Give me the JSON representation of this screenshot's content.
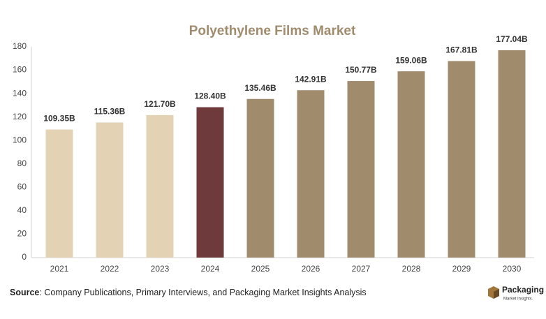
{
  "chart_data": {
    "type": "bar",
    "title": "Polyethylene Films Market",
    "categories": [
      "2021",
      "2022",
      "2023",
      "2024",
      "2025",
      "2026",
      "2027",
      "2028",
      "2029",
      "2030"
    ],
    "values": [
      109.35,
      115.36,
      121.7,
      128.4,
      135.46,
      142.91,
      150.77,
      159.06,
      167.81,
      177.04
    ],
    "value_labels": [
      "109.35B",
      "115.36B",
      "121.70B",
      "128.40B",
      "135.46B",
      "142.91B",
      "150.77B",
      "159.06B",
      "167.81B",
      "177.04B"
    ],
    "colors": [
      "#e3d2b4",
      "#e3d2b4",
      "#e3d2b4",
      "#6f3a3b",
      "#a08b6c",
      "#a08b6c",
      "#a08b6c",
      "#a08b6c",
      "#a08b6c",
      "#a08b6c"
    ],
    "ylim": [
      0,
      180
    ],
    "yticks": [
      0,
      20,
      40,
      60,
      80,
      100,
      120,
      140,
      160,
      180
    ],
    "grid": false
  },
  "source": {
    "label": "Source",
    "text": ": Company Publications, Primary Interviews, and Packaging Market Insights Analysis"
  },
  "logo": {
    "name": "Packaging",
    "tagline": "Market Insights."
  }
}
